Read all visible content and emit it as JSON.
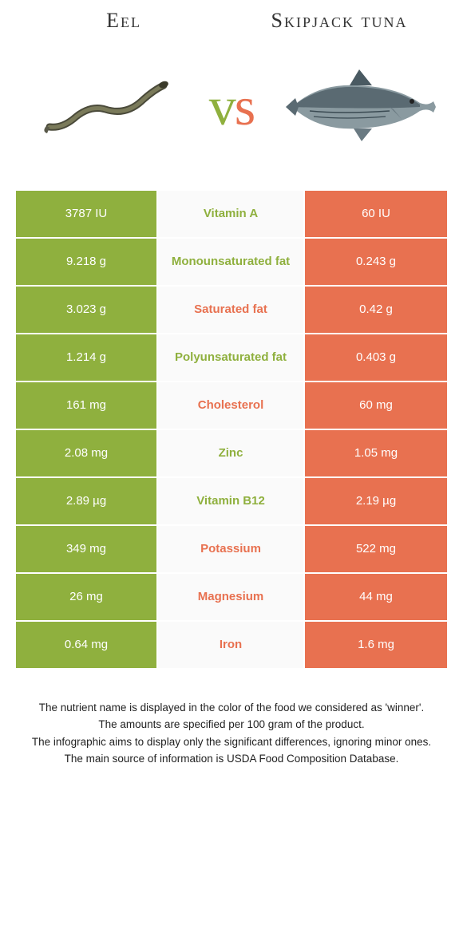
{
  "colors": {
    "left": "#8fb03e",
    "right": "#e87150",
    "mid_bg": "#fafafa"
  },
  "header": {
    "left_label": "Eel",
    "right_label": "Skipjack tuna",
    "vs": "vs"
  },
  "rows": [
    {
      "left": "3787 IU",
      "mid": "Vitamin A",
      "right": "60 IU",
      "winner": "left"
    },
    {
      "left": "9.218 g",
      "mid": "Monounsaturated fat",
      "right": "0.243 g",
      "winner": "left"
    },
    {
      "left": "3.023 g",
      "mid": "Saturated fat",
      "right": "0.42 g",
      "winner": "right"
    },
    {
      "left": "1.214 g",
      "mid": "Polyunsaturated fat",
      "right": "0.403 g",
      "winner": "left"
    },
    {
      "left": "161 mg",
      "mid": "Cholesterol",
      "right": "60 mg",
      "winner": "right"
    },
    {
      "left": "2.08 mg",
      "mid": "Zinc",
      "right": "1.05 mg",
      "winner": "left"
    },
    {
      "left": "2.89 µg",
      "mid": "Vitamin B12",
      "right": "2.19 µg",
      "winner": "left"
    },
    {
      "left": "349 mg",
      "mid": "Potassium",
      "right": "522 mg",
      "winner": "right"
    },
    {
      "left": "26 mg",
      "mid": "Magnesium",
      "right": "44 mg",
      "winner": "right"
    },
    {
      "left": "0.64 mg",
      "mid": "Iron",
      "right": "1.6 mg",
      "winner": "right"
    }
  ],
  "footnotes": [
    "The nutrient name is displayed in the color of the food we considered as 'winner'.",
    "The amounts are specified per 100 gram of the product.",
    "The infographic aims to display only the significant differences, ignoring minor ones.",
    "The main source of information is USDA Food Composition Database."
  ]
}
